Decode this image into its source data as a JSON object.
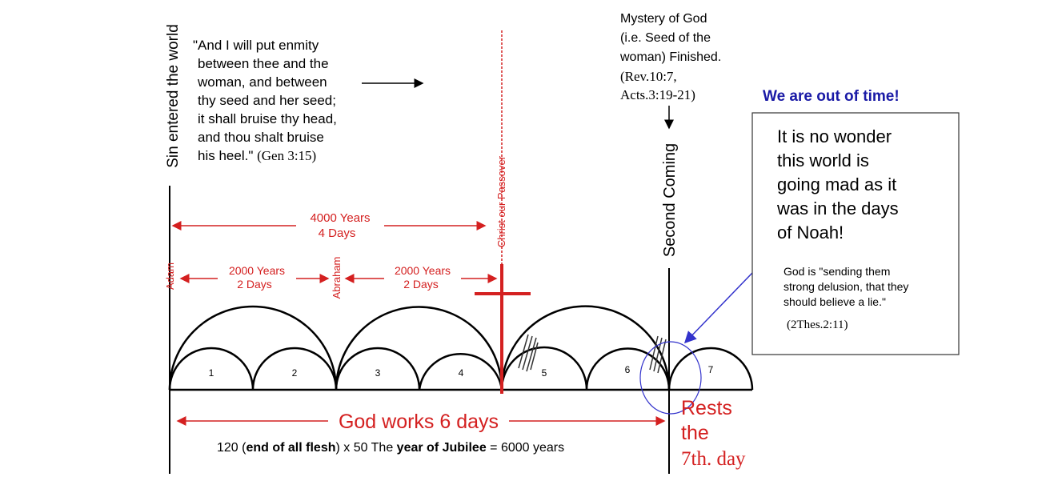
{
  "left_label": "Sin entered the world",
  "quote": {
    "lines": [
      "\"And I will put enmity",
      "between thee and the",
      "woman, and between",
      "thy seed and her seed;",
      "it shall bruise thy head,",
      "and thou shalt bruise",
      "his heel.\""
    ],
    "reference": "(Gen 3:15)"
  },
  "mystery": {
    "lines": [
      "Mystery of God",
      "(i.e. Seed of the",
      "woman) Finished."
    ],
    "reference": [
      "(Rev.10:7,",
      "Acts.3:19-21)"
    ]
  },
  "markers": {
    "adam": "Adam",
    "abraham": "Abraham",
    "christ": "Christ our Passover",
    "second_coming": "Second Coming"
  },
  "spans": [
    {
      "years": "4000 Years",
      "days": "4 Days"
    },
    {
      "years": "2000 Years",
      "days": "2 Days"
    },
    {
      "years": "2000 Years",
      "days": "2 Days"
    }
  ],
  "days": [
    1,
    2,
    3,
    4,
    5,
    6,
    7
  ],
  "warning": "We are out of time!",
  "box": {
    "lines": [
      "It is no wonder",
      "this world is",
      "going mad as it",
      "was in the days",
      "of Noah!"
    ],
    "quote": [
      "God is \"sending them",
      "strong delusion, that they",
      "should believe a lie.\""
    ],
    "reference": "(2Thes.2:11)"
  },
  "works": "God works 6 days",
  "rests": [
    "Rests",
    "the",
    "7th. day"
  ],
  "formula": [
    "120 (",
    "end of all flesh",
    ") x 50 The ",
    "year of Jubilee",
    " = 6000 years"
  ]
}
